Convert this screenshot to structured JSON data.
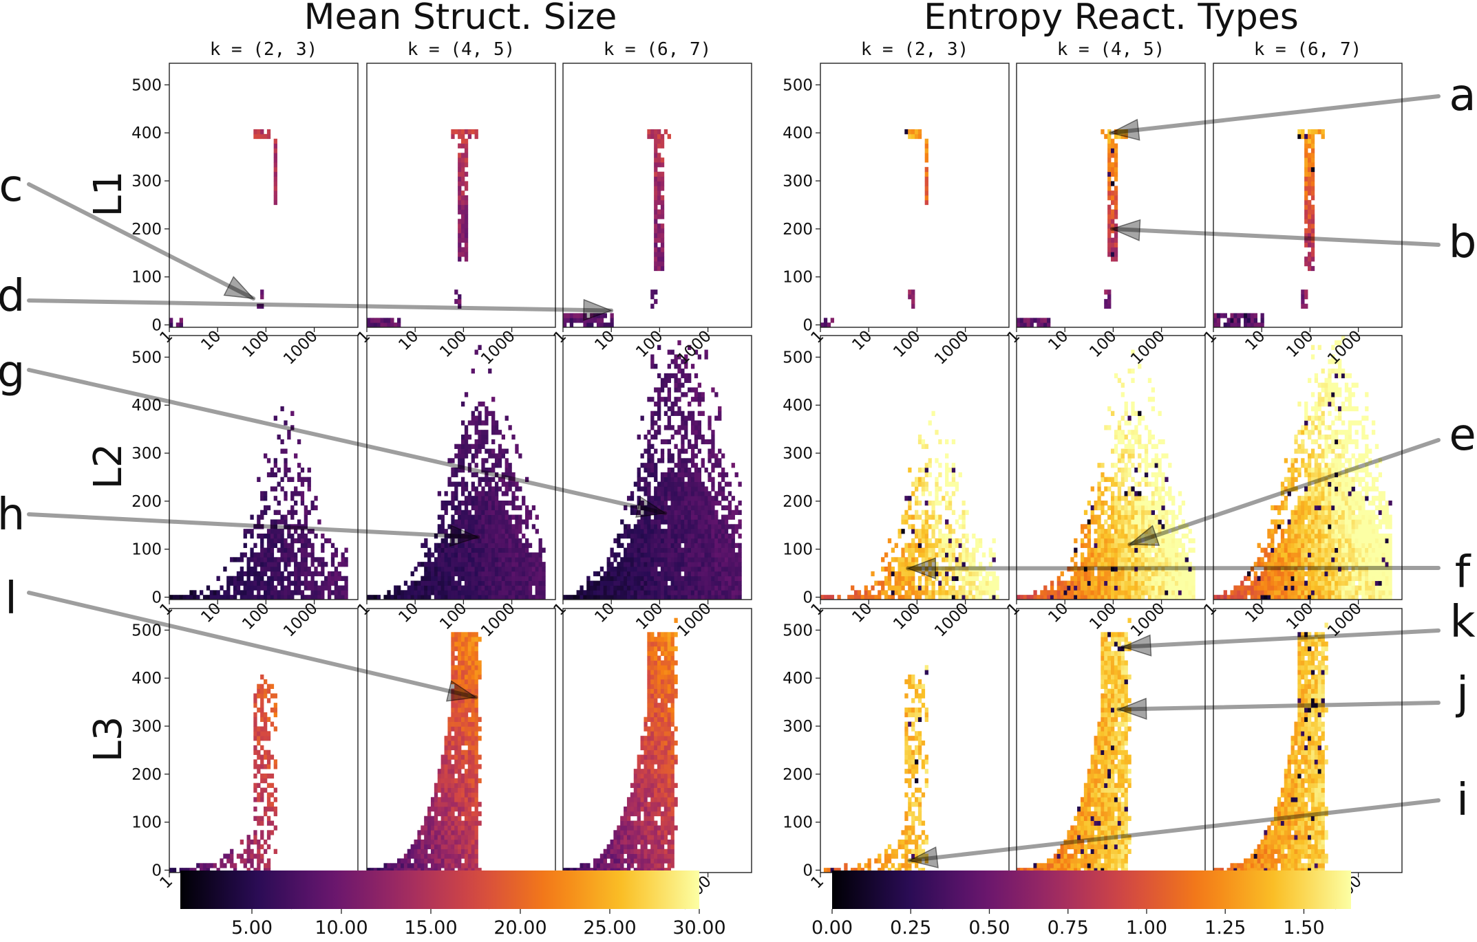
{
  "chart_data": {
    "type": "heatmap",
    "groups": [
      {
        "title": "Mean Struct. Size",
        "colorbar": {
          "cmap": "inferno",
          "range": [
            1,
            30
          ],
          "ticks": [
            "5.00",
            "10.00",
            "15.00",
            "20.00",
            "25.00",
            "30.00"
          ],
          "tick_values": [
            5,
            10,
            15,
            20,
            25,
            30
          ]
        }
      },
      {
        "title": "Entropy React. Types",
        "colorbar": {
          "cmap": "inferno",
          "range": [
            0,
            1.65
          ],
          "ticks": [
            "0.00",
            "0.25",
            "0.50",
            "0.75",
            "1.00",
            "1.25",
            "1.50"
          ],
          "tick_values": [
            0,
            0.25,
            0.5,
            0.75,
            1.0,
            1.25,
            1.5
          ]
        }
      }
    ],
    "column_titles": [
      "k = (2, 3)",
      "k = (4, 5)",
      "k = (6, 7)"
    ],
    "row_labels": [
      "L1",
      "L2",
      "L3"
    ],
    "x_axis": {
      "scale": "log",
      "range": [
        1,
        8000
      ],
      "ticks": [
        "1",
        "10",
        "100",
        "1000"
      ],
      "tick_values": [
        1,
        10,
        100,
        1000
      ]
    },
    "y_axis": {
      "range": [
        -5,
        545
      ],
      "ticks": [
        "0",
        "100",
        "200",
        "300",
        "400",
        "500"
      ],
      "tick_values": [
        0,
        100,
        200,
        300,
        400,
        500
      ]
    },
    "annotations": [
      {
        "label": "a",
        "points_to": {
          "group": 1,
          "row": 0,
          "col": 1,
          "x": 90,
          "y": 400
        }
      },
      {
        "label": "b",
        "points_to": {
          "group": 1,
          "row": 0,
          "col": 1,
          "x": 95,
          "y": 200
        }
      },
      {
        "label": "c",
        "points_to": {
          "group": 0,
          "row": 0,
          "col": 0,
          "x": 55,
          "y": 55
        }
      },
      {
        "label": "d",
        "points_to": {
          "group": 0,
          "row": 0,
          "col": 2,
          "x": 10,
          "y": 30
        }
      },
      {
        "label": "e",
        "points_to": {
          "group": 1,
          "row": 1,
          "col": 1,
          "x": 220,
          "y": 110
        }
      },
      {
        "label": "f",
        "points_to": {
          "group": 1,
          "row": 1,
          "col": 0,
          "x": 65,
          "y": 60
        }
      },
      {
        "label": "g",
        "points_to": {
          "group": 0,
          "row": 1,
          "col": 2,
          "x": 130,
          "y": 175
        }
      },
      {
        "label": "h",
        "points_to": {
          "group": 0,
          "row": 1,
          "col": 1,
          "x": 200,
          "y": 125
        }
      },
      {
        "label": "i",
        "points_to": {
          "group": 1,
          "row": 2,
          "col": 0,
          "x": 70,
          "y": 20
        }
      },
      {
        "label": "j",
        "points_to": {
          "group": 1,
          "row": 2,
          "col": 1,
          "x": 130,
          "y": 335
        }
      },
      {
        "label": "k",
        "points_to": {
          "group": 1,
          "row": 2,
          "col": 1,
          "x": 160,
          "y": 465
        }
      },
      {
        "label": "l",
        "points_to": {
          "group": 0,
          "row": 2,
          "col": 1,
          "x": 180,
          "y": 360
        }
      }
    ]
  }
}
